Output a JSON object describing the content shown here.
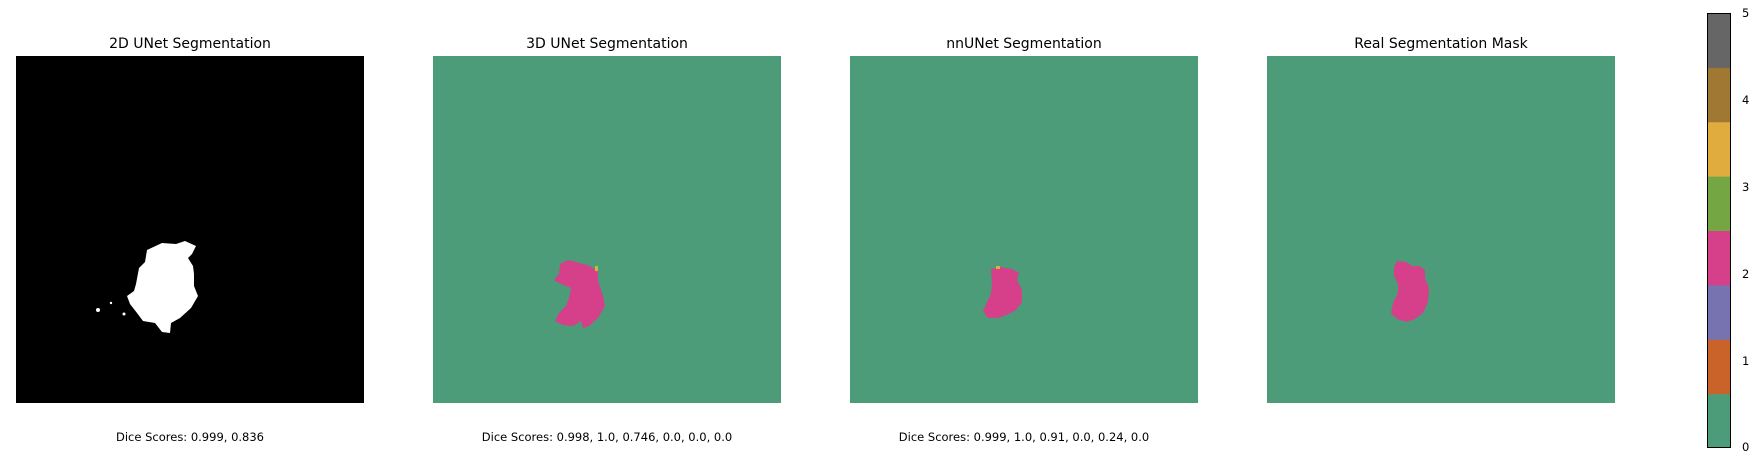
{
  "panels": [
    {
      "title": "2D UNet Segmentation",
      "caption": "Dice Scores: 0.999, 0.836",
      "background": "#000000",
      "mask_color": "#ffffff"
    },
    {
      "title": "3D UNet Segmentation",
      "caption": "Dice Scores: 0.998, 1.0, 0.746, 0.0, 0.0, 0.0",
      "background": "#4c9c7a",
      "mask_color": "#d63f8a"
    },
    {
      "title": "nnUNet Segmentation",
      "caption": "Dice Scores: 0.999, 1.0, 0.91, 0.0, 0.24, 0.0",
      "background": "#4c9c7a",
      "mask_color": "#d63f8a"
    },
    {
      "title": "Real Segmentation Mask",
      "caption": "",
      "background": "#4c9c7a",
      "mask_color": "#d63f8a"
    }
  ],
  "colorbar": {
    "min": 0,
    "max": 5,
    "tick_labels": [
      "0",
      "1",
      "2",
      "3",
      "4",
      "5"
    ],
    "colors": [
      "#4c9c7a",
      "#c9632a",
      "#7772b0",
      "#d63f8a",
      "#74a643",
      "#e0ac3e",
      "#a07833",
      "#666666"
    ]
  }
}
